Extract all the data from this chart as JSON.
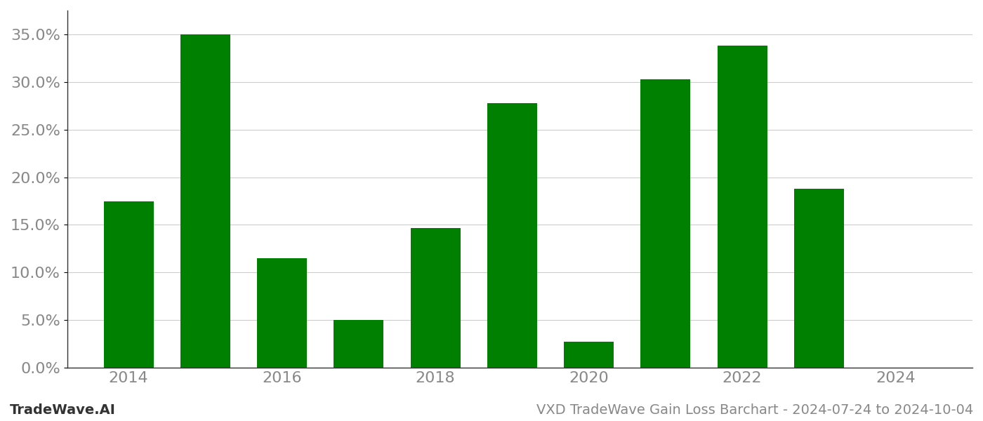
{
  "years": [
    2014,
    2015,
    2016,
    2017,
    2018,
    2019,
    2020,
    2021,
    2022,
    2023,
    2024
  ],
  "values": [
    0.175,
    0.35,
    0.115,
    0.05,
    0.147,
    0.278,
    0.027,
    0.303,
    0.338,
    0.188,
    0.0
  ],
  "bar_color": "#008000",
  "ylim": [
    0.0,
    0.375
  ],
  "yticks": [
    0.0,
    0.05,
    0.1,
    0.15,
    0.2,
    0.25,
    0.3,
    0.35
  ],
  "xticks": [
    2014,
    2016,
    2018,
    2020,
    2022,
    2024
  ],
  "xlabel": "",
  "ylabel": "",
  "footer_left": "TradeWave.AI",
  "footer_right": "VXD TradeWave Gain Loss Barchart - 2024-07-24 to 2024-10-04",
  "background_color": "#ffffff",
  "grid_color": "#cccccc",
  "bar_width": 0.65,
  "figwidth": 14.0,
  "figheight": 6.0,
  "dpi": 100,
  "ytick_fontsize": 16,
  "xtick_fontsize": 16,
  "footer_fontsize": 14
}
